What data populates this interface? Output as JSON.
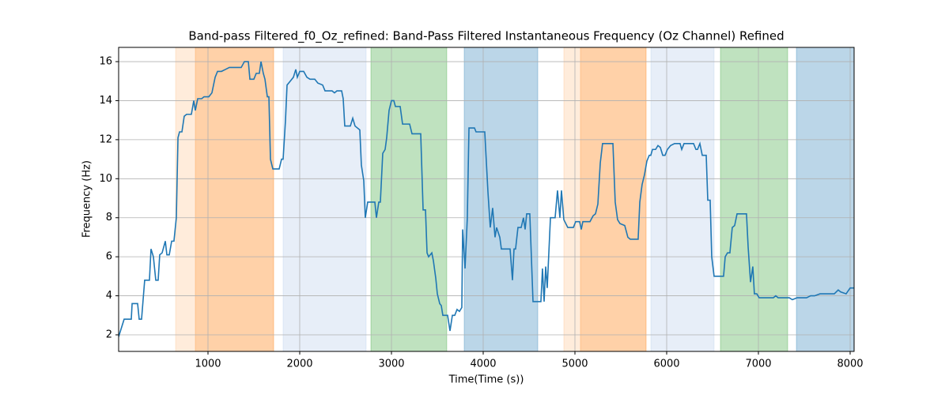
{
  "chart_data": {
    "type": "line",
    "title": "Band-pass Filtered_f0_Oz_refined: Band-Pass Filtered Instantaneous Frequency (Oz Channel) Refined",
    "xlabel": "Time(Time (s))",
    "ylabel": "Frequency (Hz)",
    "xlim": [
      26,
      8043
    ],
    "ylim": [
      1.15,
      16.73
    ],
    "xticks": [
      1000,
      2000,
      3000,
      4000,
      5000,
      6000,
      7000,
      8000
    ],
    "yticks": [
      2,
      4,
      6,
      8,
      10,
      12,
      14,
      16
    ],
    "grid": true,
    "spans": [
      {
        "start": 647,
        "end": 1716,
        "color": "#ff7f0e",
        "alpha": 0.15
      },
      {
        "start": 862,
        "end": 1716,
        "color": "#ff7f0e",
        "alpha": 0.25
      },
      {
        "start": 1819,
        "end": 2724,
        "color": "#aec7e8",
        "alpha": 0.3
      },
      {
        "start": 2776,
        "end": 3603,
        "color": "#2ca02c",
        "alpha": 0.3
      },
      {
        "start": 3793,
        "end": 4595,
        "color": "#1f77b4",
        "alpha": 0.3
      },
      {
        "start": 4879,
        "end": 5776,
        "color": "#ff7f0e",
        "alpha": 0.15
      },
      {
        "start": 5060,
        "end": 5776,
        "color": "#ff7f0e",
        "alpha": 0.25
      },
      {
        "start": 5828,
        "end": 6517,
        "color": "#aec7e8",
        "alpha": 0.3
      },
      {
        "start": 6586,
        "end": 7319,
        "color": "#2ca02c",
        "alpha": 0.3
      },
      {
        "start": 7414,
        "end": 8043,
        "color": "#1f77b4",
        "alpha": 0.3
      }
    ],
    "x": [
      26,
      86,
      164,
      173,
      233,
      250,
      276,
      310,
      362,
      379,
      405,
      431,
      457,
      474,
      500,
      535,
      552,
      578,
      604,
      629,
      655,
      673,
      690,
      716,
      741,
      767,
      819,
      845,
      862,
      888,
      931,
      957,
      1009,
      1043,
      1078,
      1104,
      1147,
      1190,
      1233,
      1293,
      1362,
      1397,
      1440,
      1457,
      1500,
      1526,
      1560,
      1578,
      1603,
      1621,
      1647,
      1664,
      1681,
      1707,
      1776,
      1802,
      1819,
      1845,
      1862,
      1897,
      1931,
      1957,
      1974,
      2000,
      2043,
      2078,
      2112,
      2164,
      2198,
      2250,
      2276,
      2353,
      2379,
      2405,
      2457,
      2474,
      2491,
      2552,
      2578,
      2603,
      2655,
      2672,
      2698,
      2715,
      2741,
      2819,
      2836,
      2862,
      2879,
      2905,
      2931,
      2948,
      2974,
      3000,
      3026,
      3043,
      3095,
      3121,
      3198,
      3224,
      3319,
      3345,
      3371,
      3388,
      3405,
      3440,
      3457,
      3483,
      3500,
      3526,
      3543,
      3560,
      3612,
      3638,
      3664,
      3690,
      3715,
      3741,
      3767,
      3776,
      3802,
      3827,
      3845,
      3905,
      3922,
      4017,
      4052,
      4077,
      4103,
      4129,
      4146,
      4181,
      4198,
      4293,
      4319,
      4336,
      4353,
      4379,
      4414,
      4439,
      4457,
      4474,
      4508,
      4543,
      4629,
      4646,
      4664,
      4681,
      4698,
      4733,
      4784,
      4810,
      4836,
      4853,
      4879,
      4922,
      4983,
      5008,
      5051,
      5069,
      5086,
      5164,
      5198,
      5224,
      5250,
      5276,
      5301,
      5414,
      5439,
      5465,
      5491,
      5543,
      5577,
      5603,
      5689,
      5707,
      5732,
      5758,
      5784,
      5810,
      5827,
      5845,
      5879,
      5905,
      5931,
      5957,
      5982,
      6008,
      6043,
      6086,
      6146,
      6164,
      6189,
      6293,
      6319,
      6336,
      6362,
      6388,
      6431,
      6448,
      6474,
      6491,
      6517,
      6620,
      6638,
      6663,
      6689,
      6715,
      6741,
      6767,
      6870,
      6888,
      6914,
      6939,
      6956,
      6982,
      7008,
      7163,
      7189,
      7215,
      7336,
      7370,
      7422,
      7525,
      7569,
      7612,
      7672,
      7827,
      7870,
      7896,
      7956,
      8000,
      8043
    ],
    "series": [
      {
        "color": "#1f77b4",
        "values": [
          1.9,
          2.8,
          2.8,
          3.6,
          3.6,
          2.8,
          2.8,
          4.8,
          4.8,
          6.4,
          6.0,
          4.8,
          4.8,
          6.1,
          6.2,
          6.8,
          6.1,
          6.1,
          6.8,
          6.8,
          8.0,
          12.1,
          12.4,
          12.4,
          13.2,
          13.3,
          13.3,
          14.0,
          13.5,
          14.1,
          14.1,
          14.2,
          14.2,
          14.4,
          15.2,
          15.5,
          15.5,
          15.6,
          15.7,
          15.7,
          15.7,
          16.0,
          16.0,
          15.1,
          15.1,
          15.4,
          15.4,
          16.0,
          15.4,
          15.1,
          14.2,
          14.2,
          11.0,
          10.5,
          10.5,
          11.0,
          11.0,
          13.0,
          14.8,
          15.0,
          15.2,
          15.6,
          15.2,
          15.5,
          15.5,
          15.2,
          15.1,
          15.1,
          14.9,
          14.8,
          14.5,
          14.5,
          14.4,
          14.5,
          14.5,
          14.1,
          12.7,
          12.7,
          13.1,
          12.7,
          12.5,
          10.7,
          9.9,
          8.0,
          8.8,
          8.8,
          8.0,
          8.8,
          8.8,
          11.3,
          11.5,
          12.1,
          13.5,
          14.0,
          14.0,
          13.7,
          13.7,
          12.8,
          12.8,
          12.3,
          12.3,
          8.4,
          8.4,
          6.2,
          6.0,
          6.2,
          5.8,
          4.9,
          4.1,
          3.6,
          3.5,
          3.0,
          3.0,
          2.2,
          3.0,
          3.0,
          3.3,
          3.2,
          3.4,
          7.4,
          5.4,
          8.0,
          12.6,
          12.6,
          12.4,
          12.4,
          9.3,
          7.5,
          8.5,
          7.0,
          7.5,
          7.0,
          6.4,
          6.4,
          4.8,
          6.4,
          6.4,
          7.5,
          7.5,
          8.0,
          7.4,
          8.2,
          8.2,
          3.7,
          3.7,
          5.4,
          3.7,
          5.5,
          4.4,
          8.0,
          8.0,
          9.4,
          8.0,
          9.4,
          7.9,
          7.5,
          7.5,
          7.8,
          7.8,
          7.4,
          7.8,
          7.8,
          8.1,
          8.2,
          8.7,
          10.8,
          11.8,
          11.8,
          8.8,
          7.9,
          7.7,
          7.6,
          7.0,
          6.9,
          6.9,
          8.8,
          9.7,
          10.2,
          10.9,
          11.2,
          11.2,
          11.5,
          11.5,
          11.7,
          11.6,
          11.2,
          11.2,
          11.5,
          11.7,
          11.8,
          11.8,
          11.5,
          11.8,
          11.8,
          11.5,
          11.5,
          11.8,
          11.2,
          11.2,
          8.9,
          8.9,
          6.0,
          5.0,
          5.0,
          6.0,
          6.2,
          6.2,
          7.5,
          7.6,
          8.2,
          8.2,
          6.5,
          4.7,
          5.5,
          4.1,
          4.1,
          3.9,
          3.9,
          4.0,
          3.9,
          3.9,
          3.8,
          3.9,
          3.9,
          4.0,
          4.0,
          4.1,
          4.1,
          4.3,
          4.2,
          4.1,
          4.4,
          4.4
        ]
      }
    ]
  }
}
